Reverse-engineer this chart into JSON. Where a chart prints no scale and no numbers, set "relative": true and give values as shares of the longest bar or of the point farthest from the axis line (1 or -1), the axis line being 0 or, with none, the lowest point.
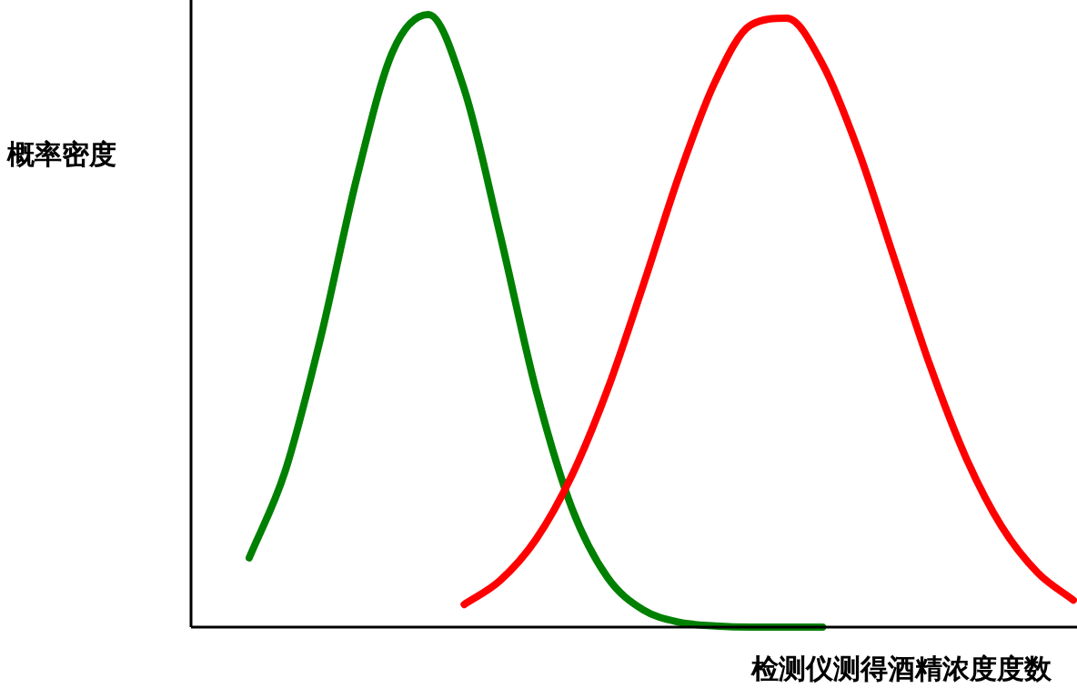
{
  "chart_data": {
    "type": "line",
    "relative": true,
    "xlabel": "检测仪测得酒精浓度度数",
    "ylabel": "概率密度",
    "line_style": "solid",
    "categories": [
      null,
      null,
      null,
      null,
      null,
      null,
      null,
      null,
      null,
      null,
      null,
      null,
      null,
      null,
      null,
      null,
      null,
      null,
      null,
      null,
      null,
      null,
      null,
      null
    ],
    "series": [
      {
        "color": "#008000",
        "values": [
          0.113,
          0.254,
          0.474,
          0.733,
          0.939,
          1.0,
          0.878,
          0.641,
          0.388,
          0.195,
          0.081,
          0.028,
          0.008,
          0.002,
          0,
          0,
          0,
          null,
          null,
          null,
          null,
          null,
          null,
          null
        ]
      },
      {
        "color": "#ff0000",
        "values": [
          null,
          null,
          null,
          null,
          null,
          null,
          0.037,
          0.076,
          0.143,
          0.247,
          0.388,
          0.559,
          0.738,
          0.89,
          0.983,
          0.994,
          0.919,
          0.778,
          0.602,
          0.427,
          0.277,
          0.164,
          0.089,
          0.044
        ]
      }
    ]
  }
}
